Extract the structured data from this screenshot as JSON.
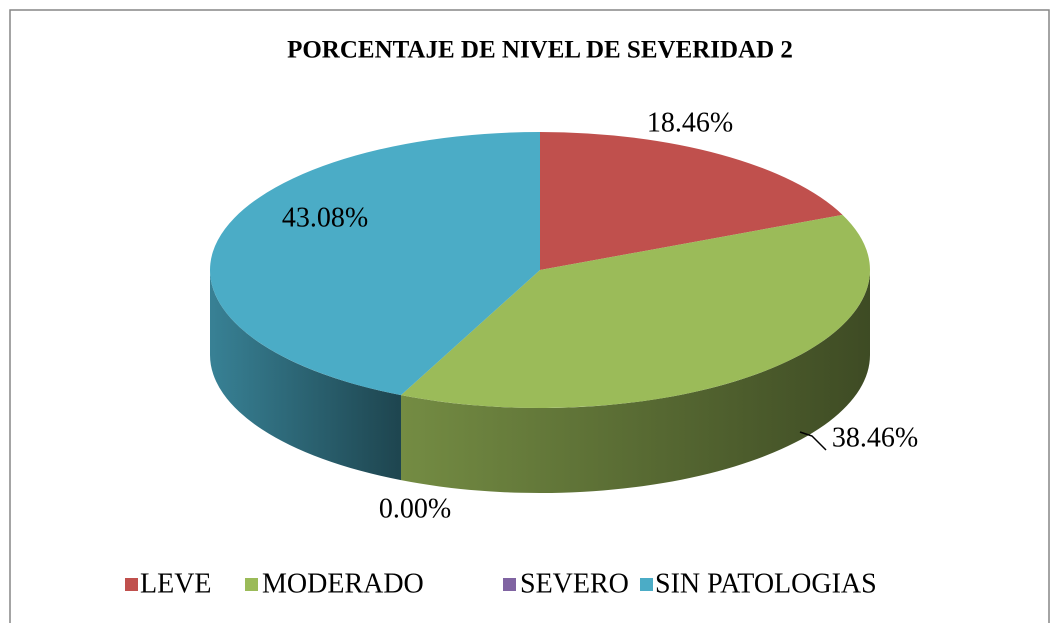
{
  "chart_data": {
    "type": "pie3d",
    "title": "PORCENTAJE DE NIVEL DE SEVERIDAD 2",
    "categories": [
      "LEVE",
      "MODERADO",
      "SEVERO",
      "SIN PATOLOGIAS"
    ],
    "values": [
      18.46,
      38.46,
      0,
      43.08
    ],
    "value_labels": [
      "18.46%",
      "38.46%",
      "0.00%",
      "43.08%"
    ],
    "colors": [
      "#c0504d",
      "#9bbb59",
      "#8064a2",
      "#4bacc6"
    ],
    "legend": "bottom"
  }
}
